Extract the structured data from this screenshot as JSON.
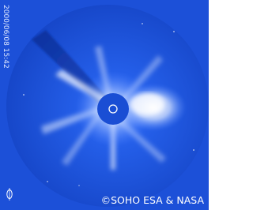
{
  "timestamp": "2000/06/08 15:42",
  "credit": "©SOHO ESA & NASA"
}
